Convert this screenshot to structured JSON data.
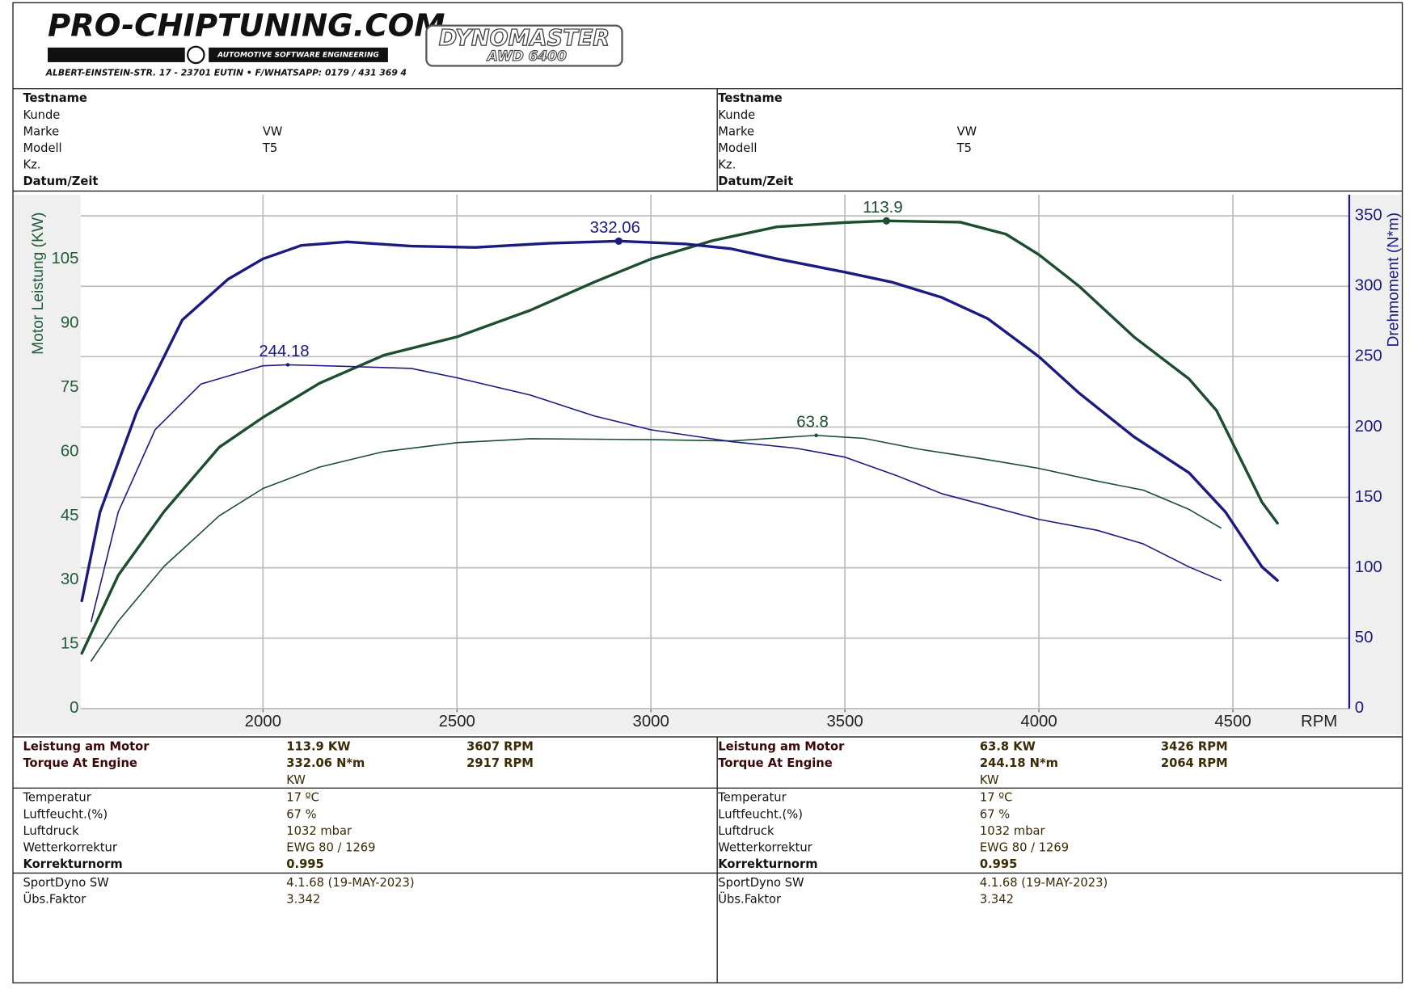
{
  "header": {
    "brand": "PRO-CHIPTUNING.COM",
    "tagline": "AUTOMOTIVE SOFTWARE ENGINEERING",
    "address": "ALBERT-EINSTEIN-STR. 17 - 23701 EUTIN • F/WHATSAPP: 0179 / 431 369 4",
    "dyno": "DYNOMASTER",
    "dyno_model": "AWD 6400"
  },
  "sheet": {
    "columns": [
      {
        "vehicle": [
          {
            "label": "Testname",
            "bold": true
          },
          {
            "label": "Kunde"
          },
          {
            "label": "Marke",
            "value": "VW"
          },
          {
            "label": "Modell",
            "value": "T5"
          },
          {
            "label": "Kz."
          },
          {
            "label": "Datum/Zeit",
            "bold": true
          }
        ],
        "results": [
          {
            "label": "Leistung am Motor",
            "value": "113.9 KW",
            "rpm": "3607 RPM"
          },
          {
            "label": "Torque At Engine",
            "value": "332.06 N*m",
            "rpm": "2917 RPM"
          }
        ],
        "unit": "KW",
        "conditions": [
          {
            "label": "Temperatur",
            "value": "17 ºC"
          },
          {
            "label": "Luftfeucht.(%)",
            "value": "67 %"
          },
          {
            "label": "Luftdruck",
            "value": "1032 mbar"
          },
          {
            "label": "Wetterkorrektur",
            "value": "EWG 80 / 1269"
          },
          {
            "label": "Korrekturnorm",
            "value": "0.995",
            "bold": true
          }
        ],
        "software": [
          {
            "label": "SportDyno SW",
            "value": "4.1.68 (19-MAY-2023)"
          },
          {
            "label": "Übs.Faktor",
            "value": "3.342"
          }
        ]
      },
      {
        "vehicle": [
          {
            "label": "Testname",
            "bold": true
          },
          {
            "label": "Kunde"
          },
          {
            "label": "Marke",
            "value": "VW"
          },
          {
            "label": "Modell",
            "value": "T5"
          },
          {
            "label": "Kz."
          },
          {
            "label": "Datum/Zeit",
            "bold": true
          }
        ],
        "results": [
          {
            "label": "Leistung am Motor",
            "value": "63.8 KW",
            "rpm": "3426 RPM"
          },
          {
            "label": "Torque At Engine",
            "value": "244.18 N*m",
            "rpm": "2064 RPM"
          }
        ],
        "unit": "KW",
        "conditions": [
          {
            "label": "Temperatur",
            "value": "17 ºC"
          },
          {
            "label": "Luftfeucht.(%)",
            "value": "67 %"
          },
          {
            "label": "Luftdruck",
            "value": "1032 mbar"
          },
          {
            "label": "Wetterkorrektur",
            "value": "EWG 80 / 1269"
          },
          {
            "label": "Korrekturnorm",
            "value": "0.995",
            "bold": true
          }
        ],
        "software": [
          {
            "label": "SportDyno SW",
            "value": "4.1.68 (19-MAY-2023)"
          },
          {
            "label": "Übs.Faktor",
            "value": "3.342"
          }
        ]
      }
    ]
  },
  "chart_data": {
    "type": "line",
    "ylabel": "Motor Leistung (KW)",
    "y2label": "Drehmoment (N*m)",
    "xlabel": "RPM",
    "xlim": [
      1530,
      4800
    ],
    "xticks": [
      2000,
      2500,
      3000,
      3500,
      4000,
      4500
    ],
    "ylim": [
      0,
      120
    ],
    "yticks": [
      0,
      15,
      30,
      45,
      60,
      75,
      90,
      105
    ],
    "y2lim": [
      0,
      365
    ],
    "y2ticks": [
      0,
      50,
      100,
      150,
      200,
      250,
      300,
      350
    ],
    "grid": true,
    "series": [
      {
        "color": "#1b4d2e",
        "width": 3,
        "x": [
          1533,
          1627,
          1745,
          1887,
          2000,
          2146,
          2311,
          2500,
          2689,
          2854,
          3000,
          3160,
          3325,
          3500,
          3607,
          3797,
          3915,
          4000,
          4104,
          4245,
          4387,
          4458,
          4528,
          4575,
          4615
        ],
        "values": [
          12.9,
          31.1,
          46,
          61,
          68,
          76,
          82.5,
          86.8,
          93,
          99.6,
          105,
          109.3,
          112.5,
          113.5,
          113.9,
          113.6,
          110.8,
          106,
          98.6,
          86.8,
          77,
          69.6,
          56.8,
          48.2,
          43.3
        ]
      },
      {
        "color": "#1a1a80",
        "width": 3,
        "axis": "y2",
        "x": [
          1533,
          1580,
          1675,
          1792,
          1910,
          2000,
          2099,
          2217,
          2382,
          2547,
          2736,
          2917,
          3090,
          3207,
          3325,
          3500,
          3620,
          3750,
          3868,
          4000,
          4104,
          4245,
          4387,
          4481,
          4575,
          4615
        ],
        "values": [
          76.6,
          139.6,
          211,
          276,
          305,
          319.5,
          329,
          331.5,
          328.5,
          327.6,
          330.5,
          332.06,
          330,
          326.6,
          319.5,
          310,
          303,
          292,
          277,
          250,
          224,
          193,
          167.5,
          139.6,
          100.6,
          91
        ]
      },
      {
        "color": "#1b4d2e",
        "width": 1.4,
        "x": [
          1557,
          1627,
          1745,
          1887,
          2000,
          2146,
          2311,
          2500,
          2689,
          3000,
          3208,
          3426,
          3549,
          3690,
          3856,
          4000,
          4151,
          4269,
          4387,
          4469
        ],
        "values": [
          11.1,
          20.4,
          33.2,
          45,
          51.4,
          56.4,
          60,
          62.1,
          63,
          62.8,
          62.5,
          63.8,
          63.1,
          60.6,
          58.3,
          56.1,
          53.1,
          51,
          46.5,
          42.2
        ]
      },
      {
        "color": "#1a1a80",
        "width": 1.4,
        "axis": "y2",
        "x": [
          1557,
          1627,
          1722,
          1840,
          2000,
          2064,
          2217,
          2382,
          2500,
          2689,
          2854,
          3000,
          3208,
          3373,
          3500,
          3632,
          3750,
          4000,
          4151,
          4269,
          4387,
          4469
        ],
        "values": [
          61.7,
          139.6,
          198,
          230.5,
          243.5,
          244.18,
          243,
          241.6,
          235,
          222.7,
          207.8,
          198,
          189.6,
          185,
          178.6,
          165.6,
          152.6,
          134.4,
          126.6,
          117,
          100.6,
          91
        ]
      }
    ]
  }
}
